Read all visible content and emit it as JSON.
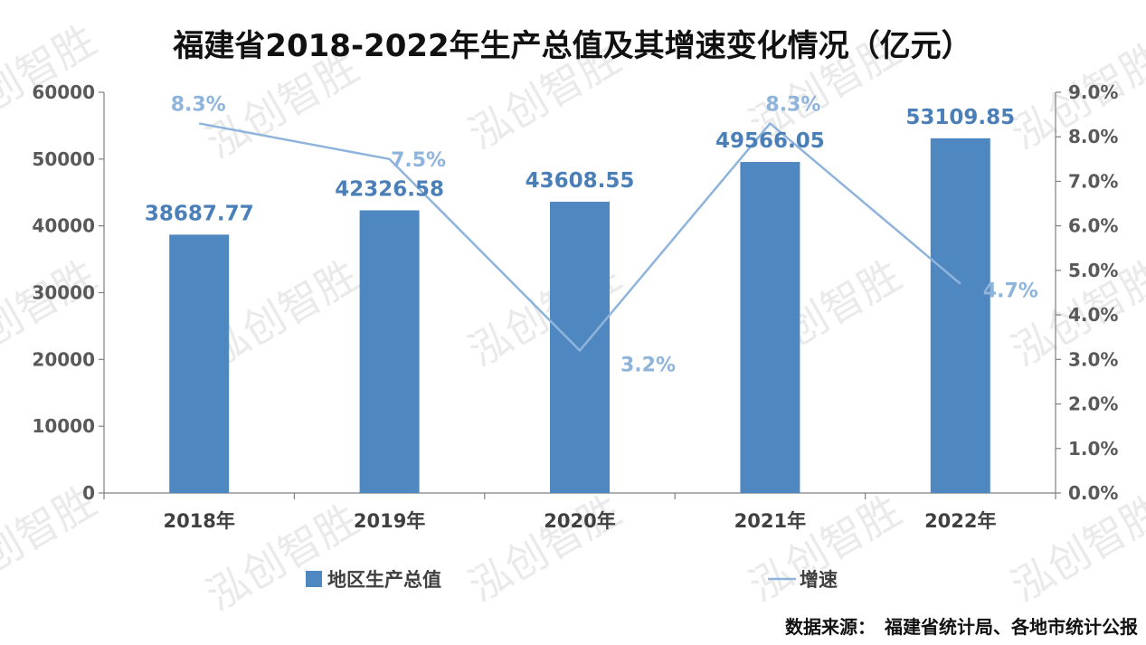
{
  "title": "福建省2018-2022年生产总值及其增速变化情况（亿元）",
  "source_note": "数据来源：　福建省统计局、各地市统计公报",
  "watermark": "泓创智胜",
  "colors": {
    "bar": "#4f88c0",
    "line": "#8fb4dc",
    "axis": "#7f7f7f"
  },
  "chart_data": {
    "type": "bar",
    "categories": [
      "2018年",
      "2019年",
      "2020年",
      "2021年",
      "2022年"
    ],
    "series": [
      {
        "name": "地区生产总值",
        "type": "bar",
        "axis": "left",
        "values": [
          38687.77,
          42326.58,
          43608.55,
          49566.05,
          53109.85
        ],
        "labels": [
          "38687.77",
          "42326.58",
          "43608.55",
          "49566.05",
          "53109.85"
        ]
      },
      {
        "name": "增速",
        "type": "line",
        "axis": "right",
        "values": [
          8.3,
          7.5,
          3.2,
          8.3,
          4.7
        ],
        "labels": [
          "8.3%",
          "7.5%",
          "3.2%",
          "8.3%",
          "4.7%"
        ]
      }
    ],
    "y_left": {
      "lim": [
        0,
        60000
      ],
      "ticks": [
        0,
        10000,
        20000,
        30000,
        40000,
        50000,
        60000
      ],
      "tick_labels": [
        "0",
        "10000",
        "20000",
        "30000",
        "40000",
        "50000",
        "60000"
      ]
    },
    "y_right": {
      "lim": [
        0,
        9
      ],
      "ticks": [
        0,
        1,
        2,
        3,
        4,
        5,
        6,
        7,
        8,
        9
      ],
      "tick_labels": [
        "0.0%",
        "1.0%",
        "2.0%",
        "3.0%",
        "4.0%",
        "5.0%",
        "6.0%",
        "7.0%",
        "8.0%",
        "9.0%"
      ]
    },
    "grid": false,
    "legend_position": "bottom"
  }
}
